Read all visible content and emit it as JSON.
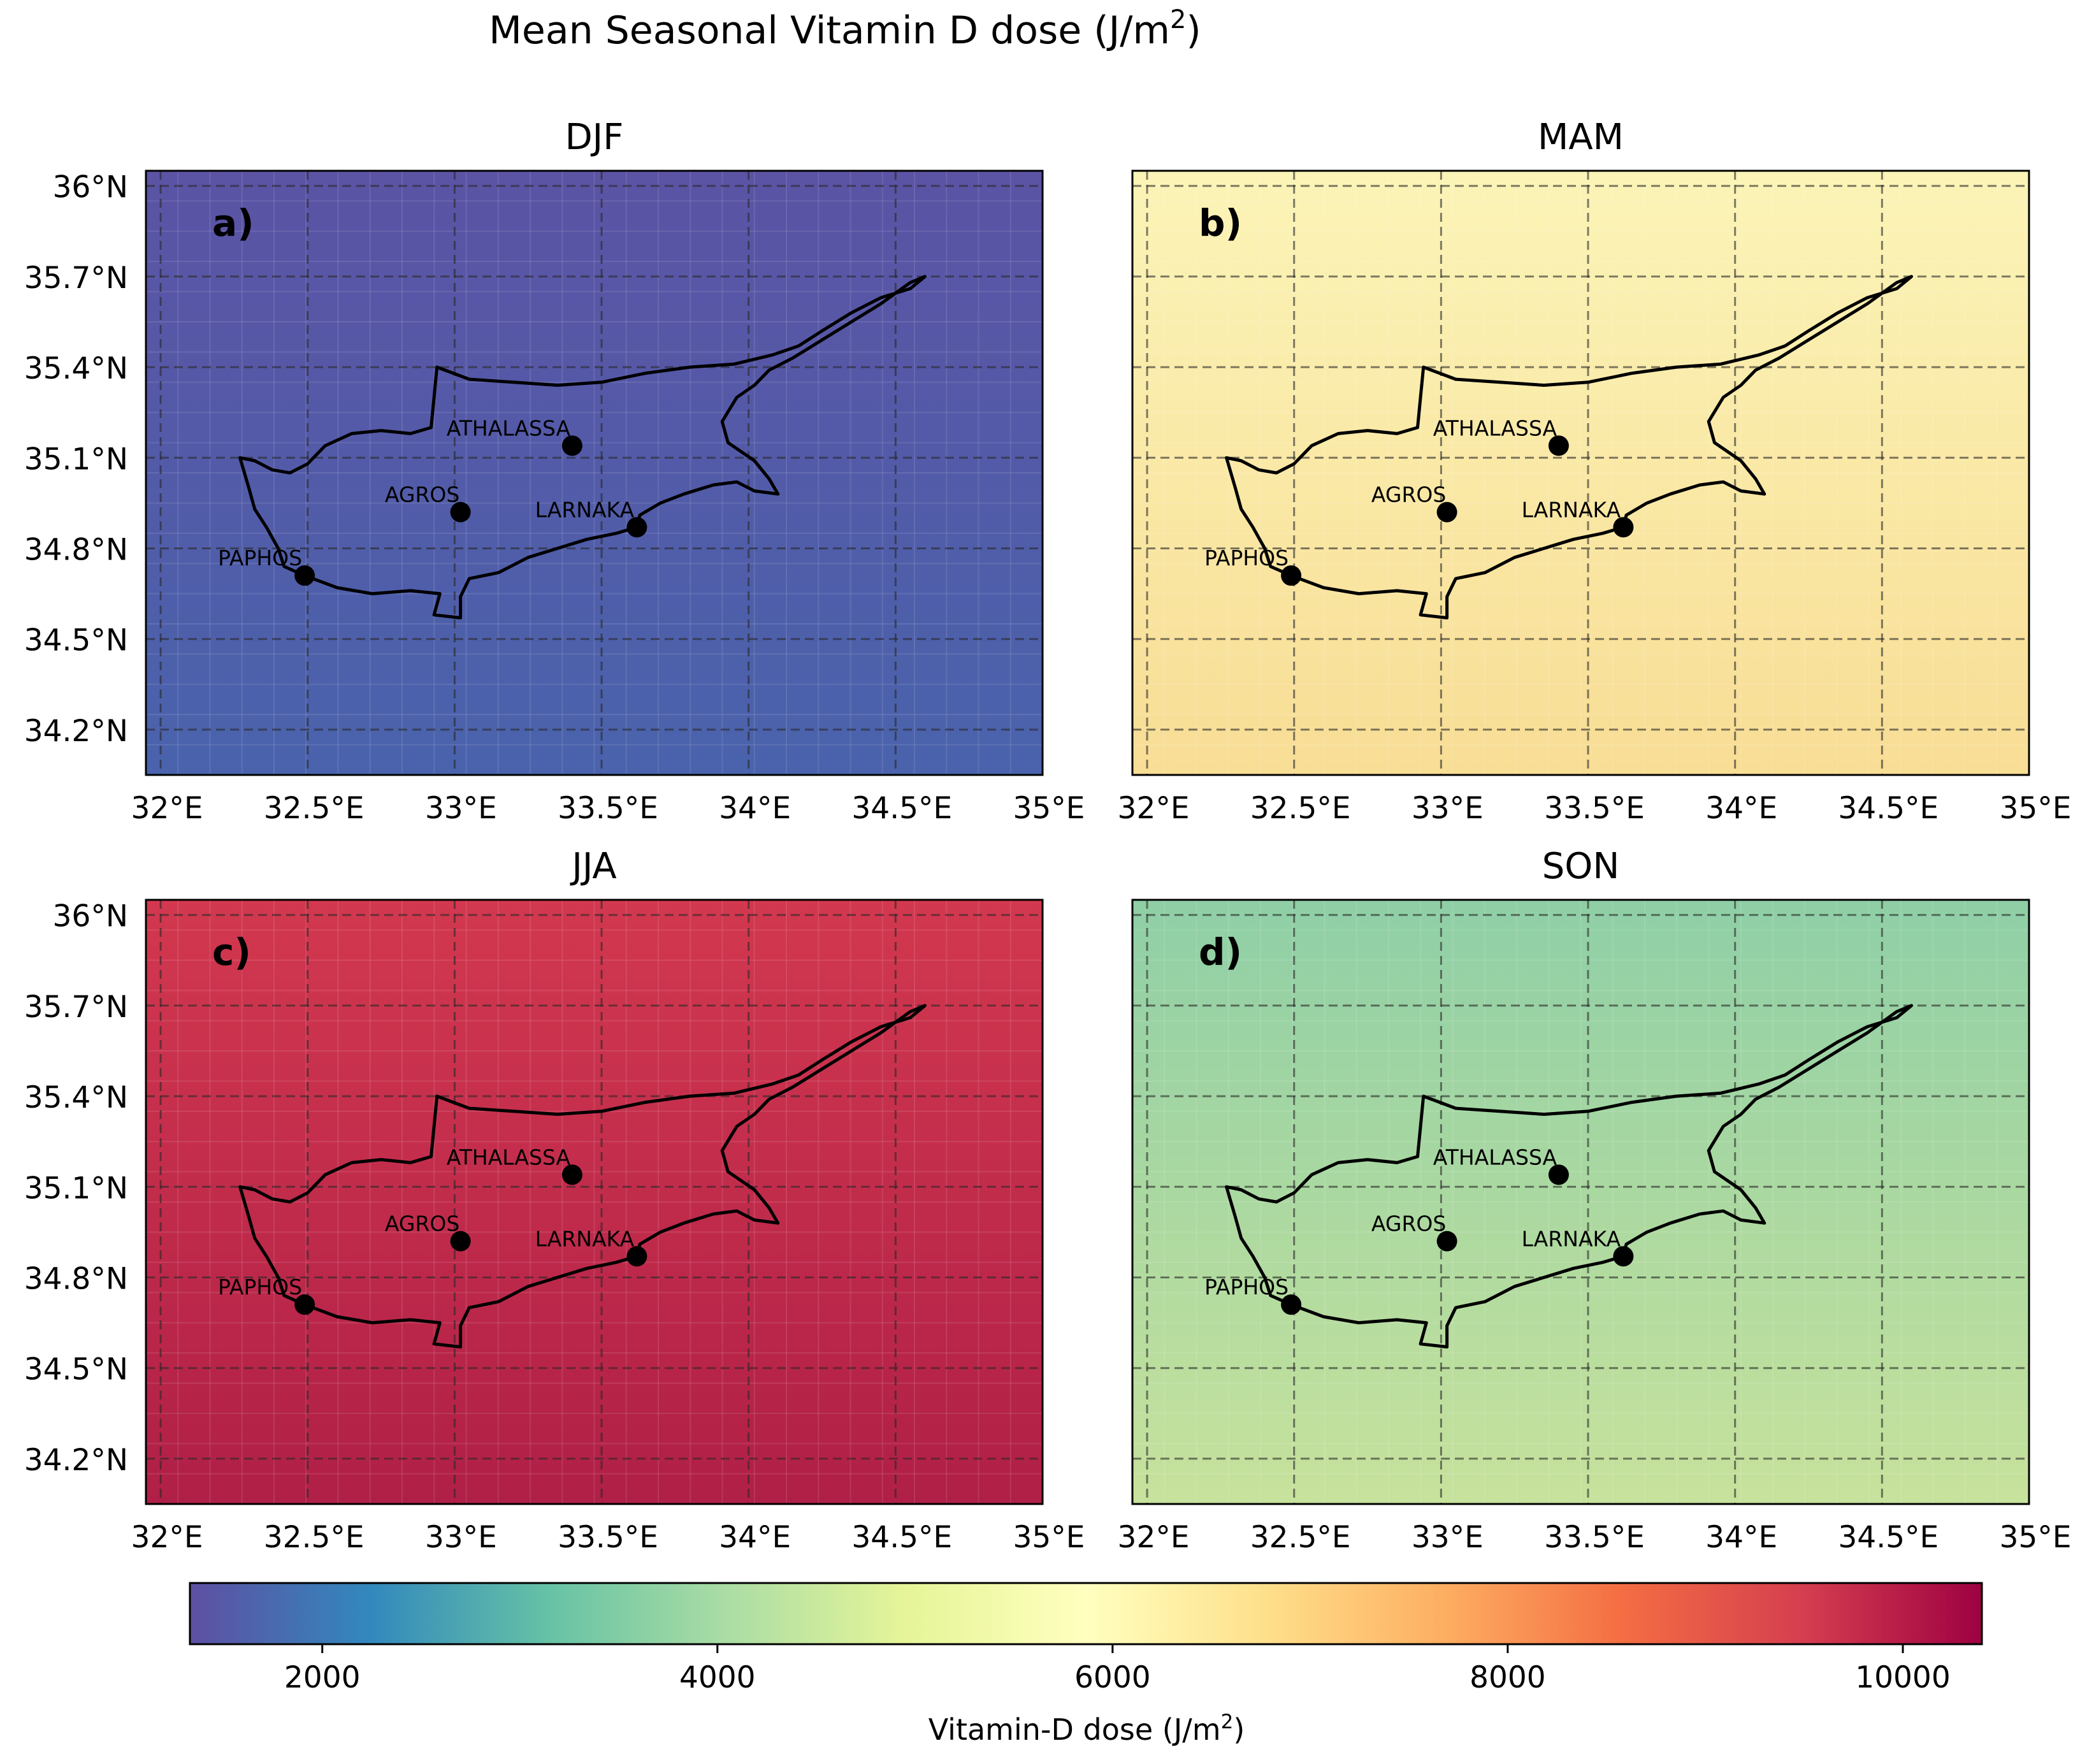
{
  "figure": {
    "title": "Mean Seasonal Vitamin D dose (J/m",
    "title_sup": "2",
    "title_end": ")"
  },
  "axes": {
    "lon_ticks": [
      "32°E",
      "32.5°E",
      "33°E",
      "33.5°E",
      "34°E",
      "34.5°E",
      "35°E"
    ],
    "lat_ticks": [
      "36°N",
      "35.7°N",
      "35.4°N",
      "35.1°N",
      "34.8°N",
      "34.5°N",
      "34.2°N"
    ],
    "lon_values": [
      32.0,
      32.5,
      33.0,
      33.5,
      34.0,
      34.5,
      35.0
    ],
    "lat_values": [
      36.0,
      35.7,
      35.4,
      35.1,
      34.8,
      34.5,
      34.2
    ],
    "lon_range": [
      31.95,
      35.0
    ],
    "lat_range": [
      34.05,
      36.05
    ],
    "grid": true
  },
  "panels": [
    {
      "season": "DJF",
      "letter": "a)",
      "approx_value": 1700,
      "colors": {
        "top": "#5b53a4",
        "bottom": "#4a63ac"
      }
    },
    {
      "season": "MAM",
      "letter": "b)",
      "approx_value": 6200,
      "colors": {
        "top": "#fbf4b7",
        "bottom": "#f8dd95"
      }
    },
    {
      "season": "JJA",
      "letter": "c)",
      "approx_value": 9800,
      "colors": {
        "top": "#d2384f",
        "bottom": "#b01f47"
      }
    },
    {
      "season": "SON",
      "letter": "d)",
      "approx_value": 4200,
      "colors": {
        "top": "#8fcfa6",
        "bottom": "#c7e29c"
      }
    }
  ],
  "stations": [
    {
      "name": "ATHALASSA",
      "lon": 33.4,
      "lat": 35.14
    },
    {
      "name": "AGROS",
      "lon": 33.02,
      "lat": 34.92
    },
    {
      "name": "LARNAKA",
      "lon": 33.62,
      "lat": 34.87
    },
    {
      "name": "PAPHOS",
      "lon": 32.49,
      "lat": 34.71
    }
  ],
  "colorbar": {
    "label": "Vitamin-D dose (J/m",
    "label_sup": "2",
    "label_end": ")",
    "range": [
      1330,
      10400
    ],
    "ticks": [
      "2000",
      "4000",
      "6000",
      "8000",
      "10000"
    ],
    "tick_values": [
      2000,
      4000,
      6000,
      8000,
      10000
    ],
    "colormap": "Spectral (reversed)",
    "stops": [
      "#5e4fa2",
      "#3288bd",
      "#66c2a5",
      "#abdda4",
      "#e6f598",
      "#ffffbf",
      "#fee08b",
      "#fdae61",
      "#f46d43",
      "#d53e4f",
      "#9e0142"
    ]
  }
}
